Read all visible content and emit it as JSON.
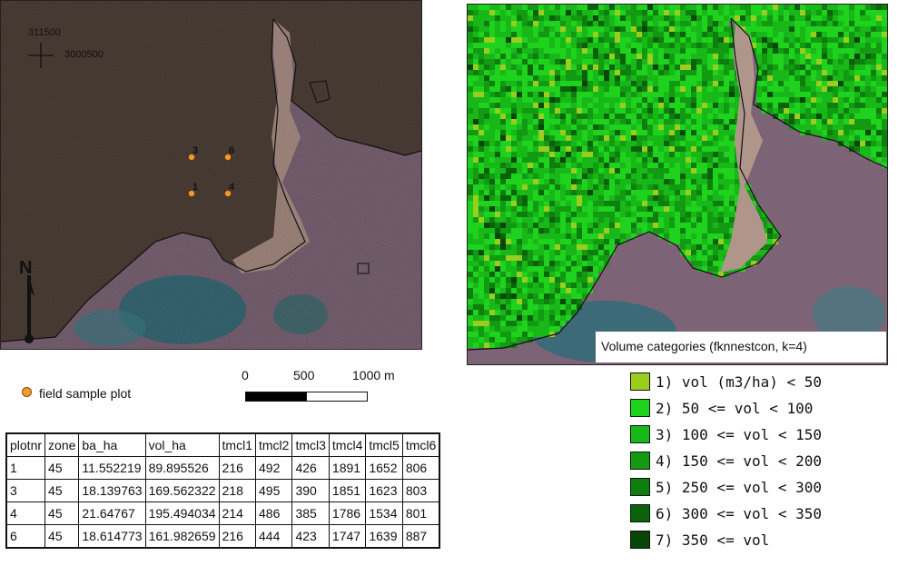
{
  "left_map": {
    "coordinate_easting": "311500",
    "coordinate_northing": "3000500",
    "north_label": "N",
    "plots": [
      {
        "label": "3",
        "color": "#f29a2e"
      },
      {
        "label": "6",
        "color": "#f29a2e"
      },
      {
        "label": "1",
        "color": "#f29a2e"
      },
      {
        "label": "4",
        "color": "#f29a2e"
      }
    ]
  },
  "scale_bar": {
    "ticks": [
      "0",
      "500",
      "1000 m"
    ]
  },
  "plot_legend": {
    "label": "field sample plot",
    "color": "#f29a2e"
  },
  "table": {
    "headers": [
      "plotnr",
      "zone",
      "ba_ha",
      "vol_ha",
      "tmcl1",
      "tmcl2",
      "tmcl3",
      "tmcl4",
      "tmcl5",
      "tmcl6"
    ],
    "rows": [
      [
        "1",
        "45",
        "11.552219",
        "89.895526",
        "216",
        "492",
        "426",
        "1891",
        "1652",
        "806"
      ],
      [
        "3",
        "45",
        "18.139763",
        "169.562322",
        "218",
        "495",
        "390",
        "1851",
        "1623",
        "803"
      ],
      [
        "4",
        "45",
        "21.64767",
        "195.494034",
        "214",
        "486",
        "385",
        "1786",
        "1534",
        "801"
      ],
      [
        "6",
        "45",
        "18.614773",
        "161.982659",
        "216",
        "444",
        "423",
        "1747",
        "1639",
        "887"
      ]
    ]
  },
  "volume_legend": {
    "title": "Volume categories (fknnestcon, k=4)",
    "items": [
      {
        "label": "1) vol (m3/ha) < 50",
        "color": "#9acd1f"
      },
      {
        "label": "2) 50 <= vol < 100",
        "color": "#1ed21e"
      },
      {
        "label": "3) 100 <= vol < 150",
        "color": "#18b818"
      },
      {
        "label": "4) 150 <= vol < 200",
        "color": "#139a13"
      },
      {
        "label": "5) 250 <= vol < 300",
        "color": "#0e7e0e"
      },
      {
        "label": "6) 300 <= vol < 350",
        "color": "#0a620a"
      },
      {
        "label": "7) 350 <= vol",
        "color": "#064606"
      }
    ]
  }
}
